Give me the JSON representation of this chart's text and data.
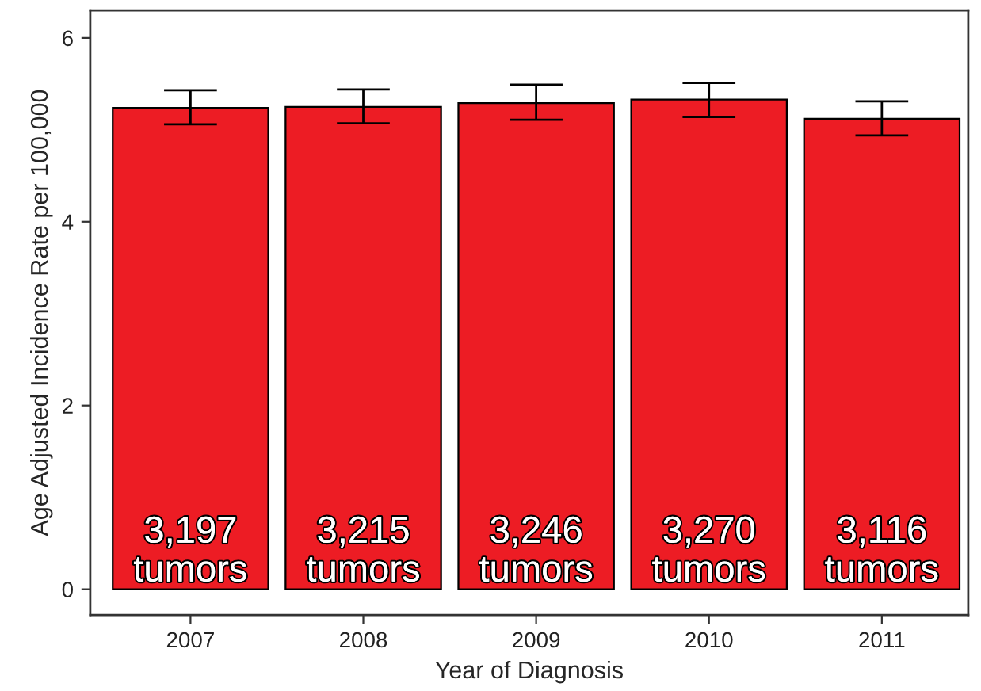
{
  "chart_data": {
    "type": "bar",
    "xlabel": "Year of Diagnosis",
    "ylabel": "Age Adjusted Incidence Rate per 100,000",
    "categories": [
      "2007",
      "2008",
      "2009",
      "2010",
      "2011"
    ],
    "values": [
      5.24,
      5.25,
      5.29,
      5.33,
      5.12
    ],
    "errors": [
      [
        5.06,
        5.43
      ],
      [
        5.07,
        5.44
      ],
      [
        5.11,
        5.49
      ],
      [
        5.14,
        5.51
      ],
      [
        4.94,
        5.31
      ]
    ],
    "annotations": [
      {
        "text": "3,197\ntumors",
        "x": "2007",
        "y": 0
      },
      {
        "text": "3,215\ntumors",
        "x": "2008",
        "y": 0
      },
      {
        "text": "3,246\ntumors",
        "x": "2009",
        "y": 0
      },
      {
        "text": "3,270\ntumors",
        "x": "2010",
        "y": 0
      },
      {
        "text": "3,116\ntumors",
        "x": "2011",
        "y": 0
      }
    ],
    "color": "#ed1c24",
    "ylim": [
      -0.28,
      6.3
    ],
    "yticks": [
      0,
      2,
      4,
      6
    ],
    "grid": false,
    "legend": false
  }
}
